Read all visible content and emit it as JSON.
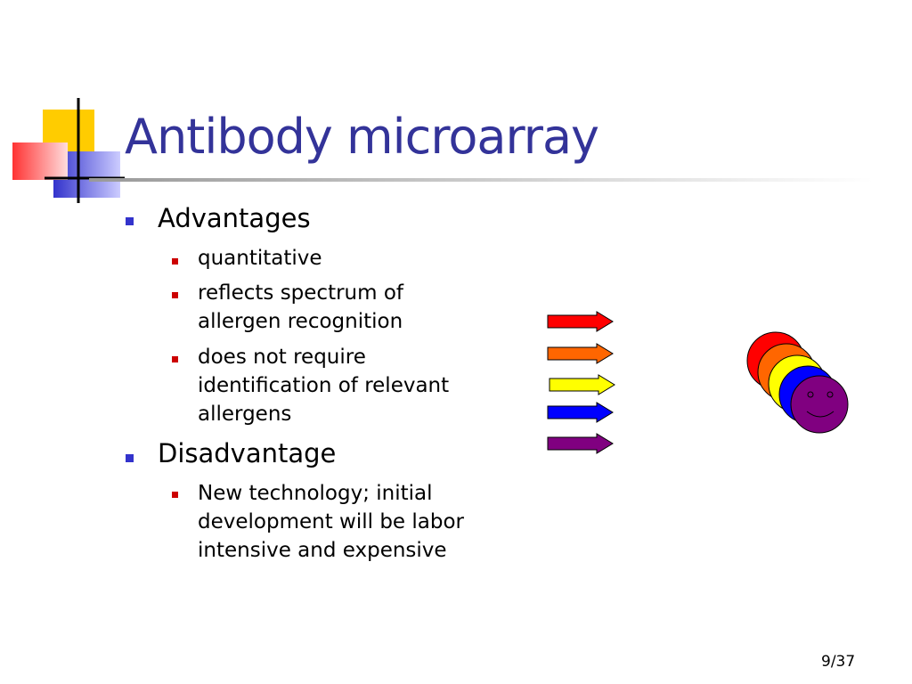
{
  "title": "Antibody microarray",
  "sections": [
    {
      "heading": "Advantages",
      "items": [
        "quantitative",
        "reflects spectrum of allergen recognition",
        "does not require identification of relevant allergens"
      ]
    },
    {
      "heading": "Disadvantage",
      "items": [
        "New technology; initial development will be labor intensive and expensive"
      ]
    }
  ],
  "page_number": "9/37"
}
